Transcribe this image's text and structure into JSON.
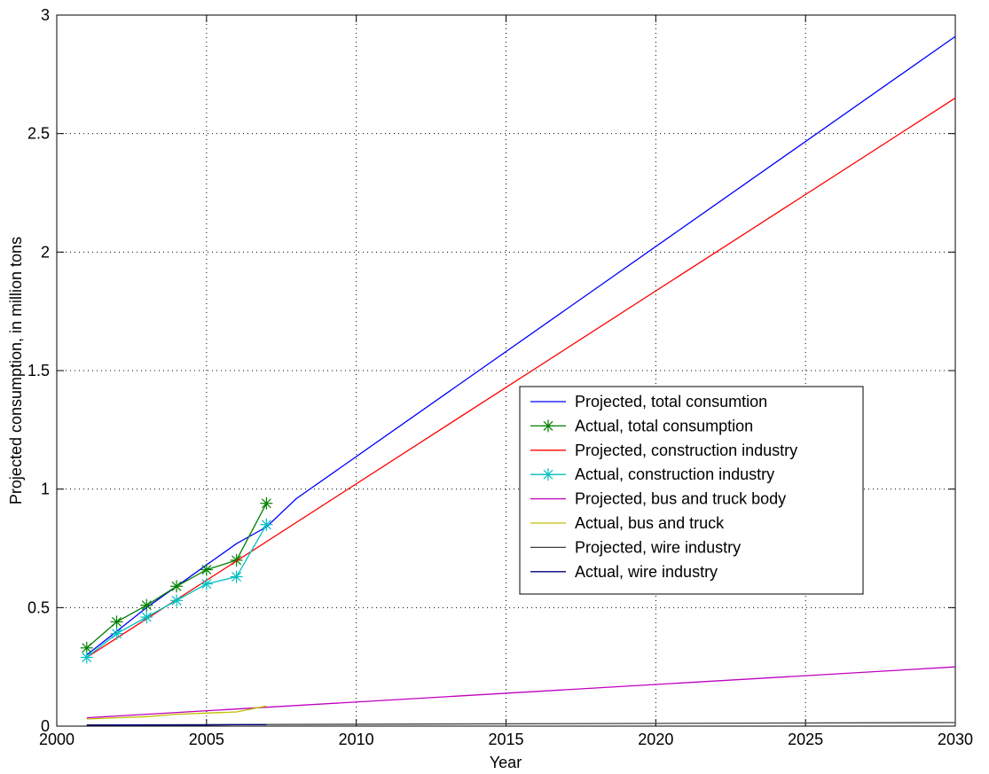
{
  "chart_data": {
    "type": "line",
    "title": "",
    "xlabel": "Year",
    "ylabel": "Projected consumption, in million tons",
    "xlim": [
      2000,
      2030
    ],
    "ylim": [
      0,
      3
    ],
    "xticks": [
      2000,
      2005,
      2010,
      2015,
      2020,
      2025,
      2030
    ],
    "yticks": [
      0,
      0.5,
      1,
      1.5,
      2,
      2.5,
      3
    ],
    "xtick_labels": [
      "2000",
      "2005",
      "2010",
      "2015",
      "2020",
      "2025",
      "2030"
    ],
    "ytick_labels": [
      "0",
      "0.5",
      "1",
      "1.5",
      "2",
      "2.5",
      "3"
    ],
    "grid": true,
    "legend_position": "center-right",
    "series": [
      {
        "name": "Projected, total consumtion",
        "color": "#0000ff",
        "marker": "none",
        "x": [
          2001,
          2002,
          2003,
          2004,
          2005,
          2006,
          2007,
          2008,
          2030
        ],
        "y": [
          0.3,
          0.4,
          0.5,
          0.59,
          0.68,
          0.77,
          0.84,
          0.96,
          2.91
        ]
      },
      {
        "name": "Actual, total consumption",
        "color": "#008000",
        "marker": "asterisk",
        "x": [
          2001,
          2002,
          2003,
          2004,
          2005,
          2006,
          2007
        ],
        "y": [
          0.33,
          0.44,
          0.51,
          0.59,
          0.66,
          0.7,
          0.94
        ]
      },
      {
        "name": "Projected, construction industry",
        "color": "#ff0000",
        "marker": "none",
        "x": [
          2001,
          2030
        ],
        "y": [
          0.29,
          2.65
        ]
      },
      {
        "name": "Actual, construction industry",
        "color": "#00bfbf",
        "marker": "asterisk",
        "x": [
          2001,
          2002,
          2003,
          2004,
          2005,
          2006,
          2007
        ],
        "y": [
          0.29,
          0.39,
          0.46,
          0.53,
          0.6,
          0.63,
          0.85
        ]
      },
      {
        "name": "Projected, bus and truck body",
        "color": "#bf00bf",
        "marker": "none",
        "x": [
          2001,
          2030
        ],
        "y": [
          0.035,
          0.25
        ]
      },
      {
        "name": "Actual, bus and truck",
        "color": "#bfbf00",
        "marker": "none",
        "x": [
          2001,
          2002,
          2003,
          2004,
          2005,
          2006,
          2007
        ],
        "y": [
          0.03,
          0.035,
          0.04,
          0.05,
          0.055,
          0.06,
          0.085
        ]
      },
      {
        "name": "Projected, wire industry",
        "color": "#404040",
        "marker": "none",
        "x": [
          2001,
          2030
        ],
        "y": [
          0.005,
          0.015
        ]
      },
      {
        "name": "Actual, wire industry",
        "color": "#00007f",
        "marker": "none",
        "x": [
          2001,
          2002,
          2003,
          2004,
          2005,
          2006,
          2007
        ],
        "y": [
          0.004,
          0.005,
          0.005,
          0.005,
          0.005,
          0.006,
          0.006
        ]
      }
    ]
  }
}
